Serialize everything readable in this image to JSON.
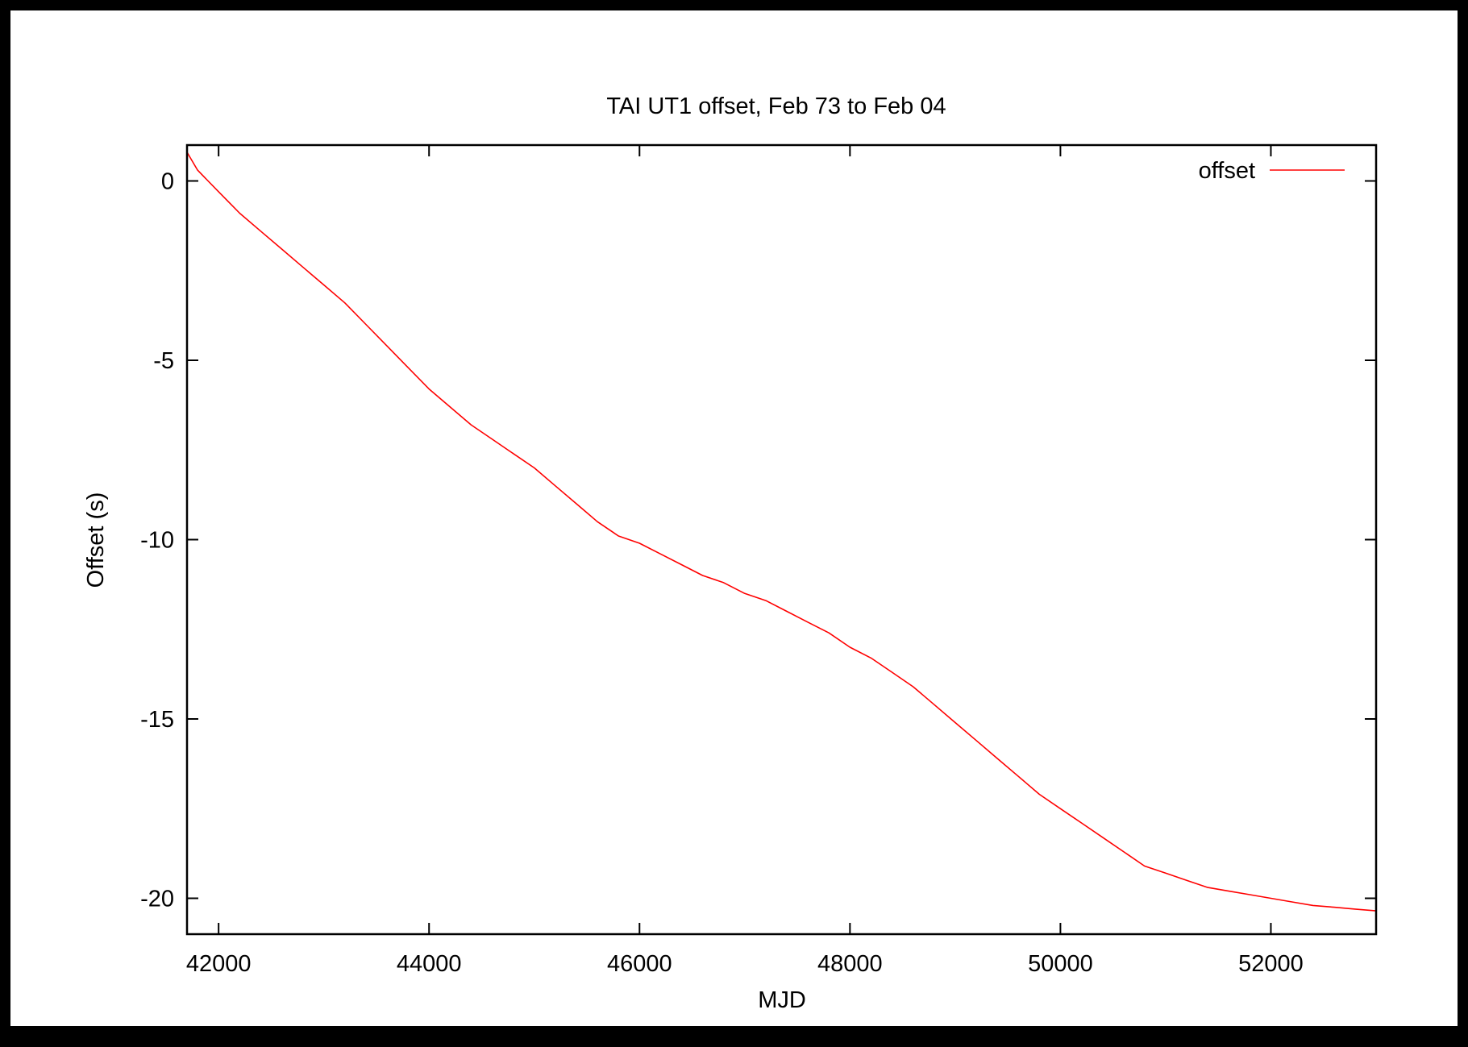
{
  "chart_data": {
    "type": "line",
    "title": "TAI UT1 offset, Feb 73 to Feb 04",
    "xlabel": "MJD",
    "ylabel": "Offset (s)",
    "xlim": [
      41700,
      53000
    ],
    "ylim": [
      -21,
      1
    ],
    "x_ticks": [
      42000,
      44000,
      46000,
      48000,
      50000,
      52000
    ],
    "x_tick_labels": [
      "42000",
      "44000",
      "46000",
      "48000",
      "50000",
      "52000"
    ],
    "y_ticks": [
      0,
      -5,
      -10,
      -15,
      -20
    ],
    "y_tick_labels": [
      "0",
      "-5",
      "-10",
      "-15",
      "-20"
    ],
    "grid": false,
    "legend_position": "top-right",
    "series": [
      {
        "name": "offset",
        "color": "#ff0000",
        "x": [
          41700,
          41800,
          41900,
          42000,
          42200,
          42400,
          42600,
          42800,
          43000,
          43200,
          43400,
          43600,
          43800,
          44000,
          44200,
          44400,
          44600,
          44800,
          45000,
          45200,
          45400,
          45600,
          45800,
          46000,
          46200,
          46400,
          46600,
          46800,
          47000,
          47200,
          47400,
          47600,
          47800,
          48000,
          48200,
          48400,
          48600,
          48800,
          49000,
          49200,
          49400,
          49600,
          49800,
          50000,
          50200,
          50400,
          50600,
          50800,
          51000,
          51200,
          51400,
          51600,
          51800,
          52000,
          52200,
          52400,
          52600,
          52800,
          53000
        ],
        "y": [
          0.8,
          0.3,
          0.0,
          -0.3,
          -0.9,
          -1.4,
          -1.9,
          -2.4,
          -2.9,
          -3.4,
          -4.0,
          -4.6,
          -5.2,
          -5.8,
          -6.3,
          -6.8,
          -7.2,
          -7.6,
          -8.0,
          -8.5,
          -9.0,
          -9.5,
          -9.9,
          -10.1,
          -10.4,
          -10.7,
          -11.0,
          -11.2,
          -11.5,
          -11.7,
          -12.0,
          -12.3,
          -12.6,
          -13.0,
          -13.3,
          -13.7,
          -14.1,
          -14.6,
          -15.1,
          -15.6,
          -16.1,
          -16.6,
          -17.1,
          -17.5,
          -17.9,
          -18.3,
          -18.7,
          -19.1,
          -19.3,
          -19.5,
          -19.7,
          -19.8,
          -19.9,
          -20.0,
          -20.1,
          -20.2,
          -20.25,
          -20.3,
          -20.35
        ]
      }
    ]
  }
}
